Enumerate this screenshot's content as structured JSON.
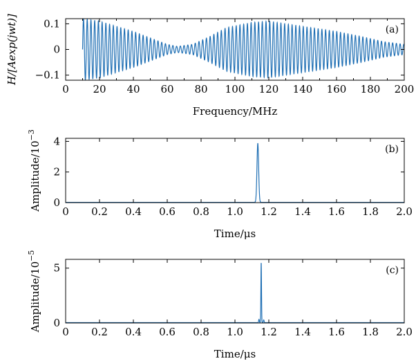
{
  "line_color": "#1f6fb4",
  "chart_data": [
    {
      "id": "a",
      "type": "line",
      "panel_label": "(a)",
      "xlabel": "Frequency/MHz",
      "ylabel": "H/[Aexp(jwt)]",
      "xlim": [
        0,
        200
      ],
      "ylim": [
        -0.12,
        0.12
      ],
      "xticks": [
        0,
        20,
        40,
        60,
        80,
        100,
        120,
        140,
        160,
        180,
        200
      ],
      "xtick_labels": [
        "0",
        "20",
        "40",
        "60",
        "80",
        "100",
        "120",
        "140",
        "160",
        "180",
        "200"
      ],
      "yticks": [
        -0.1,
        0,
        0.1
      ],
      "ytick_labels": [
        "−0.1",
        "0",
        "0.1"
      ],
      "signal": {
        "x_start": 10,
        "x_end": 200,
        "oscillation_period": 2.2,
        "envelope_points": [
          [
            10,
            0.12
          ],
          [
            20,
            0.11
          ],
          [
            30,
            0.09
          ],
          [
            40,
            0.07
          ],
          [
            50,
            0.045
          ],
          [
            60,
            0.02
          ],
          [
            66,
            0.012
          ],
          [
            75,
            0.02
          ],
          [
            85,
            0.05
          ],
          [
            95,
            0.085
          ],
          [
            110,
            0.105
          ],
          [
            120,
            0.11
          ],
          [
            130,
            0.1
          ],
          [
            145,
            0.085
          ],
          [
            160,
            0.07
          ],
          [
            175,
            0.05
          ],
          [
            188,
            0.03
          ],
          [
            200,
            0.02
          ]
        ]
      }
    },
    {
      "id": "b",
      "type": "line",
      "panel_label": "(b)",
      "xlabel": "Time/μs",
      "ylabel": "Amplitude/10",
      "ylabel_exponent": "−3",
      "xlim": [
        0,
        2
      ],
      "ylim": [
        0,
        4.2
      ],
      "xticks": [
        0,
        0.2,
        0.4,
        0.6,
        0.8,
        1.0,
        1.2,
        1.4,
        1.6,
        1.8,
        2.0
      ],
      "xtick_labels": [
        "0",
        "0.2",
        "0.4",
        "0.6",
        "0.8",
        "1.0",
        "1.2",
        "1.4",
        "1.6",
        "1.8",
        "2.0"
      ],
      "yticks": [
        0,
        2,
        4
      ],
      "ytick_labels": [
        "0",
        "2",
        "4"
      ],
      "peaks": [
        {
          "x": 1.135,
          "y": 3.85,
          "width": 0.007
        }
      ],
      "baseline": 0.02
    },
    {
      "id": "c",
      "type": "line",
      "panel_label": "(c)",
      "xlabel": "Time/μs",
      "ylabel": "Amplitude/10",
      "ylabel_exponent": "−5",
      "xlim": [
        0,
        2
      ],
      "ylim": [
        0,
        5.8
      ],
      "xticks": [
        0,
        0.2,
        0.4,
        0.6,
        0.8,
        1.0,
        1.2,
        1.4,
        1.6,
        1.8,
        2.0
      ],
      "xtick_labels": [
        "0",
        "0.2",
        "0.4",
        "0.6",
        "0.8",
        "1.0",
        "1.2",
        "1.4",
        "1.6",
        "1.8",
        "2.0"
      ],
      "yticks": [
        0,
        5
      ],
      "ytick_labels": [
        "0",
        "5"
      ],
      "peaks": [
        {
          "x": 1.155,
          "y": 5.5,
          "width": 0.0025
        },
        {
          "x": 1.142,
          "y": 0.3,
          "width": 0.003
        },
        {
          "x": 1.17,
          "y": 0.25,
          "width": 0.003
        }
      ],
      "baseline": 0.03
    }
  ]
}
